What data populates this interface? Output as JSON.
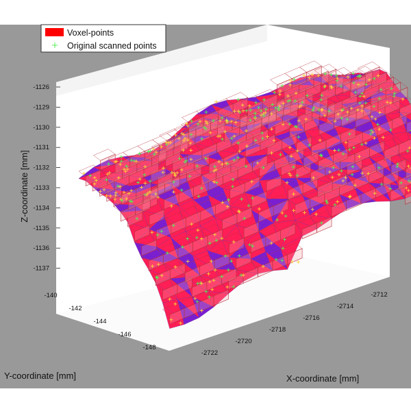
{
  "colors": {
    "figure_background": "#999999",
    "axes_wall": "#ffffff",
    "surface_red": "#ff1e55",
    "surface_purple": "#7a1fd0",
    "voxel_face": "#f8a5ae",
    "voxel_edge": "#b5303d",
    "scan_point_green": "#55ee55",
    "scan_point_yellow": "#ffd23d"
  },
  "chart_data": {
    "type": "scatter",
    "title": "",
    "xlabel": "X-coordinate [mm]",
    "ylabel": "Y-coordinate [mm]",
    "zlabel": "Z-coordinate [mm]",
    "xlim": [
      -2723,
      -2711
    ],
    "ylim": [
      -149,
      -139
    ],
    "zlim": [
      -1138,
      -1125
    ],
    "x_ticks": [
      "-2722",
      "-2720",
      "-2718",
      "-2716",
      "-2714",
      "-2712"
    ],
    "y_ticks": [
      "-140",
      "-142",
      "-144",
      "-146",
      "-148"
    ],
    "z_ticks": [
      "-1126",
      "-1129",
      "-1130",
      "-1131",
      "-1132",
      "-1133",
      "-1134",
      "-1135",
      "-1136",
      "-1137"
    ],
    "grid": false,
    "legend_position": "top-left",
    "legend": [
      {
        "label": "Voxel-points",
        "marker": "filled-square",
        "color": "#ff0000"
      },
      {
        "label": "Original scanned points",
        "marker": "plus",
        "color": "#55ee55"
      }
    ],
    "series": [
      {
        "name": "Voxel-points",
        "kind": "voxel-surface"
      },
      {
        "name": "Original scanned points",
        "kind": "scatter-3d"
      }
    ]
  }
}
